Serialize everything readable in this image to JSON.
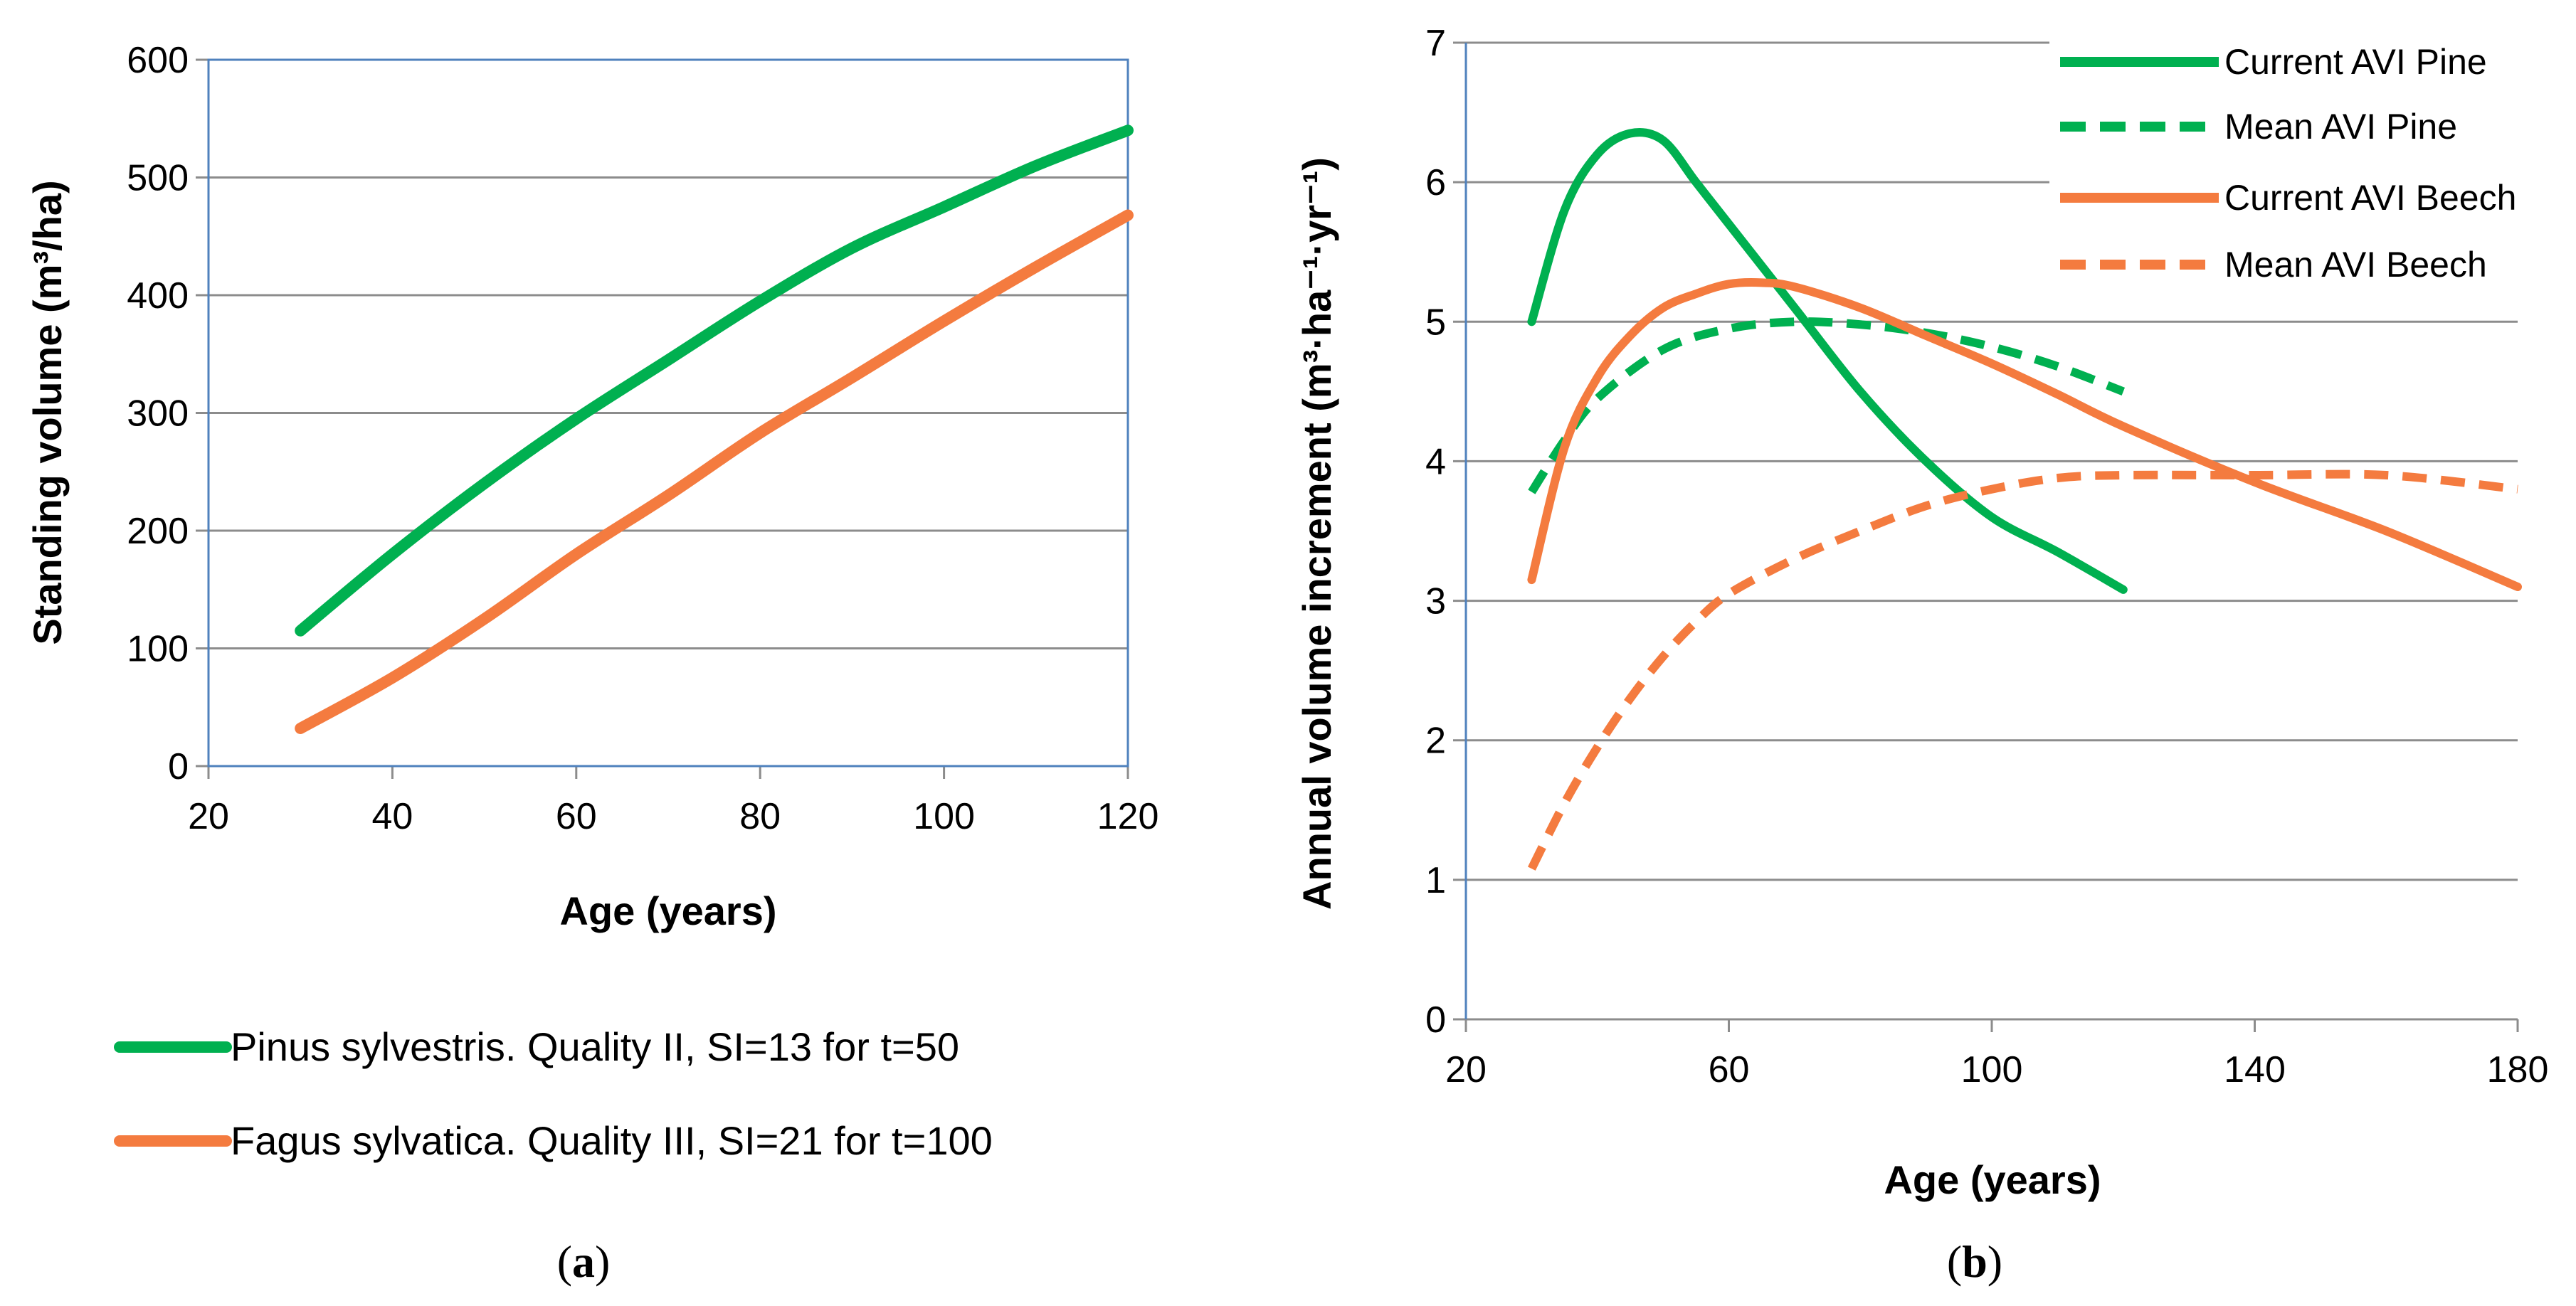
{
  "chart_data": [
    {
      "type": "line",
      "panel_label_prefix": "(",
      "panel_label_letter": "a",
      "panel_label_suffix": ")",
      "xlabel": "Age (years)",
      "ylabel": "Standing volume (m³/ha)",
      "xlim": [
        20,
        120
      ],
      "ylim": [
        0,
        600
      ],
      "xticks": [
        "20",
        "40",
        "60",
        "80",
        "100",
        "120"
      ],
      "yticks": [
        "0",
        "100",
        "200",
        "300",
        "400",
        "500",
        "600"
      ],
      "grid": "horizontal",
      "legend_position": "below",
      "series": [
        {
          "name": "Pinus sylvestris. Quality II, SI=13 for t=50",
          "color": "#00b050",
          "dash": "solid",
          "x": [
            30,
            40,
            50,
            60,
            70,
            80,
            90,
            100,
            110,
            120
          ],
          "y": [
            115,
            180,
            240,
            295,
            345,
            395,
            440,
            475,
            510,
            540
          ]
        },
        {
          "name": "Fagus sylvatica. Quality III, SI=21 for t=100",
          "color": "#f47b3f",
          "dash": "solid",
          "x": [
            30,
            40,
            50,
            60,
            70,
            80,
            90,
            100,
            110,
            120
          ],
          "y": [
            32,
            75,
            125,
            180,
            230,
            283,
            330,
            378,
            424,
            468
          ]
        }
      ]
    },
    {
      "type": "line",
      "panel_label_prefix": "(",
      "panel_label_letter": "b",
      "panel_label_suffix": ")",
      "xlabel": "Age (years)",
      "ylabel": "Annual volume increment (m³·ha⁻¹·yr⁻¹)",
      "xlim": [
        20,
        180
      ],
      "ylim": [
        0,
        7
      ],
      "xticks": [
        "20",
        "60",
        "100",
        "140",
        "180"
      ],
      "yticks": [
        "0",
        "1",
        "2",
        "3",
        "4",
        "5",
        "6",
        "7"
      ],
      "grid": "horizontal",
      "legend_position": "top-right",
      "series": [
        {
          "name": "Current AVI Pine",
          "color": "#00b050",
          "dash": "solid",
          "x": [
            30,
            35,
            40,
            45,
            50,
            55,
            60,
            70,
            80,
            90,
            100,
            110,
            120
          ],
          "y": [
            5.0,
            5.8,
            6.2,
            6.35,
            6.3,
            6.0,
            5.7,
            5.1,
            4.5,
            4.0,
            3.6,
            3.35,
            3.08
          ]
        },
        {
          "name": "Mean AVI Pine",
          "color": "#00b050",
          "dash": "dashed",
          "x": [
            30,
            35,
            40,
            50,
            60,
            70,
            80,
            90,
            100,
            110,
            120
          ],
          "y": [
            3.78,
            4.15,
            4.45,
            4.8,
            4.95,
            5.0,
            4.98,
            4.92,
            4.82,
            4.68,
            4.5
          ]
        },
        {
          "name": "Current AVI Beech",
          "color": "#f47b3f",
          "dash": "solid",
          "x": [
            30,
            35,
            40,
            45,
            50,
            55,
            60,
            65,
            70,
            80,
            90,
            100,
            110,
            120,
            140,
            160,
            180
          ],
          "y": [
            3.15,
            4.1,
            4.6,
            4.9,
            5.1,
            5.2,
            5.27,
            5.28,
            5.25,
            5.1,
            4.9,
            4.7,
            4.48,
            4.25,
            3.85,
            3.5,
            3.1
          ]
        },
        {
          "name": "Mean AVI Beech",
          "color": "#f47b3f",
          "dash": "dashed",
          "x": [
            30,
            35,
            40,
            45,
            50,
            55,
            60,
            70,
            80,
            90,
            100,
            110,
            120,
            140,
            160,
            180
          ],
          "y": [
            1.08,
            1.55,
            1.95,
            2.3,
            2.6,
            2.85,
            3.05,
            3.3,
            3.5,
            3.68,
            3.8,
            3.88,
            3.9,
            3.9,
            3.9,
            3.8
          ]
        }
      ]
    }
  ]
}
